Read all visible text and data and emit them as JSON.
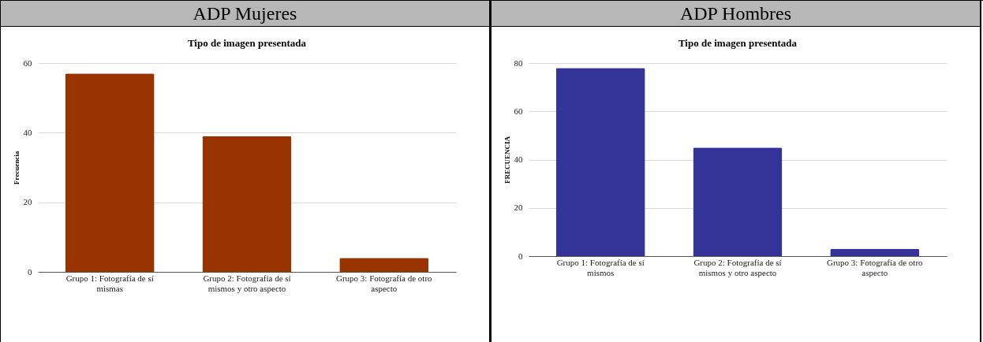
{
  "chart_data": [
    {
      "type": "bar",
      "title": "ADP Mujeres",
      "subtitle": "Tipo de imagen presentada",
      "ylabel": "Frecuencia",
      "categories": [
        "Grupo 1: Fotografía de sí mismas",
        "Grupo 2: Fotografía de sí mismos y otro aspecto",
        "Grupo 3: Fotografía de otro aspecto"
      ],
      "values": [
        57,
        39,
        4
      ],
      "color": "#993300",
      "ylim": [
        0,
        60
      ],
      "yticks": [
        0,
        20,
        40,
        60
      ],
      "grid": "y"
    },
    {
      "type": "bar",
      "title": "ADP Hombres",
      "subtitle": "Tipo de imagen presentada",
      "ylabel": "FRECUENCIA",
      "categories": [
        "Grupo 1: Fotografía de sí mismos",
        "Grupo 2: Fotografía de sí mismos y otro aspecto",
        "Grupo 3: Fotografía de otro aspecto"
      ],
      "values": [
        78,
        45,
        3
      ],
      "color": "#333399",
      "ylim": [
        0,
        80
      ],
      "yticks": [
        0,
        20,
        40,
        60,
        80
      ],
      "grid": "y"
    }
  ]
}
